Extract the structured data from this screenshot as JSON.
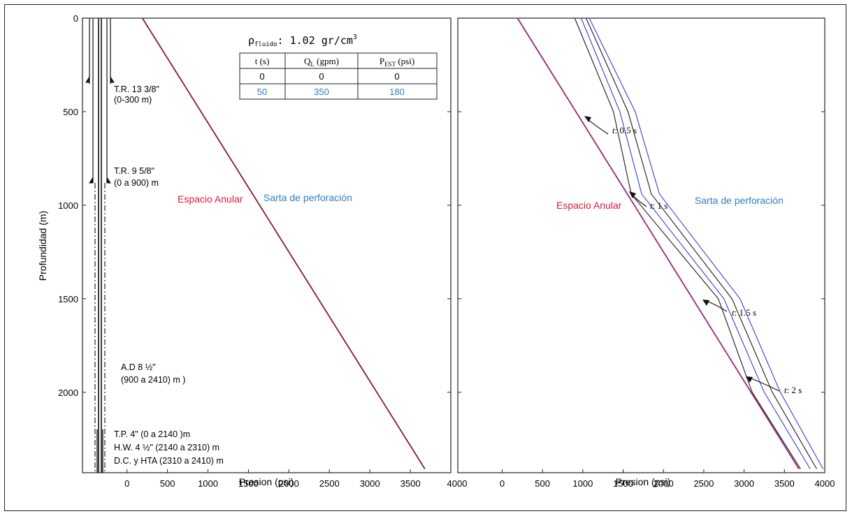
{
  "chart_data": [
    {
      "type": "line",
      "panel": "left",
      "xlabel": "Presion (psi)",
      "ylabel": "Profundidad (m)",
      "xlim": [
        -550,
        4000
      ],
      "ylim": [
        2430,
        0
      ],
      "xticks": [
        0,
        500,
        1000,
        1500,
        2000,
        2500,
        3000,
        3500
      ],
      "xticks_right_edge": "4000",
      "yticks": [
        0,
        500,
        1000,
        1500,
        2000
      ],
      "labels": {
        "annulus": "Espacio Anular",
        "drillstring": "Sarta de perforación"
      },
      "density": {
        "symbol": "ρ",
        "sub": "fluido",
        "text": ": 1.02 gr/cm",
        "sup": "3"
      },
      "table": {
        "headers": [
          {
            "main": "t (s)",
            "sub": ""
          },
          {
            "main": "Q",
            "sub": "L",
            "tail": " (gpm)"
          },
          {
            "main": "P",
            "sub": "EST",
            "tail": " (psi)"
          }
        ],
        "rows": [
          [
            "0",
            "0",
            "0"
          ],
          [
            "50",
            "350",
            "180"
          ]
        ]
      },
      "series": [
        {
          "points": [
            [
              190,
              0
            ],
            [
              3680,
              2410
            ]
          ]
        }
      ],
      "well": [
        {
          "label": "T.R. 13 3/8\"",
          "range": "(0-300 m)"
        },
        {
          "label": "T.R. 9 5/8\"",
          "range": "(0 a 900) m"
        },
        {
          "label": "A.D  8 ½\"",
          "range": "(900 a 2410) m )"
        },
        {
          "label": "T.P. 4\"  (0 a  2140 )m"
        },
        {
          "label": "H.W. 4 ½\" (2140 a 2310) m"
        },
        {
          "label": "D.C. y HTA (2310 a 2410) m"
        }
      ]
    },
    {
      "type": "line",
      "panel": "right",
      "xlabel": "Presion (psi)",
      "xlim": [
        -550,
        4000
      ],
      "ylim": [
        2430,
        0
      ],
      "xticks": [
        0,
        500,
        1000,
        1500,
        2000,
        2500,
        3000,
        3500,
        4000
      ],
      "yticks": [
        0,
        500,
        1000,
        1500,
        2000
      ],
      "labels": {
        "annulus": "Espacio Anular",
        "drillstring": "Sarta de perforación"
      },
      "annotations": [
        {
          "prefix": "t",
          "value": ": 0.5 s"
        },
        {
          "prefix": "t",
          "value": ": 1 s"
        },
        {
          "prefix": "t",
          "value": ": 1.5 s"
        },
        {
          "prefix": "t",
          "value": ": 2 s"
        }
      ],
      "series": [
        {
          "color": "#d81b3a",
          "points": [
            [
              190,
              0
            ],
            [
              3680,
              2410
            ]
          ]
        },
        {
          "color": "#3a3ad8",
          "points": [
            [
              1000,
              0
            ],
            [
              1000,
              0
            ]
          ]
        },
        {
          "color": "#1a1a1a",
          "points": [
            [
              900,
              0
            ],
            [
              1380,
              500
            ],
            [
              1600,
              940
            ],
            [
              2680,
              1500
            ],
            [
              3100,
              2000
            ],
            [
              3700,
              2410
            ]
          ]
        },
        {
          "color": "#3a3ad8",
          "points": [
            [
              980,
              0
            ],
            [
              1460,
              500
            ],
            [
              1730,
              940
            ],
            [
              2750,
              1500
            ],
            [
              3250,
              2000
            ],
            [
              3820,
              2410
            ]
          ]
        },
        {
          "color": "#1a1a1a",
          "points": [
            [
              1040,
              0
            ],
            [
              1560,
              500
            ],
            [
              1850,
              940
            ],
            [
              2850,
              1500
            ],
            [
              3350,
              2000
            ],
            [
              3900,
              2410
            ]
          ]
        },
        {
          "color": "#3a3ad8",
          "points": [
            [
              1080,
              0
            ],
            [
              1650,
              500
            ],
            [
              1950,
              940
            ],
            [
              2950,
              1500
            ],
            [
              3450,
              2000
            ],
            [
              3980,
              2410
            ]
          ]
        }
      ]
    }
  ],
  "colors": {
    "annulus": "#d81b3a",
    "drillstring": "#2f7dc0",
    "blue_line": "#3a3ad8",
    "black_line": "#1a1a1a",
    "table_row2": "#2f7dc0"
  }
}
